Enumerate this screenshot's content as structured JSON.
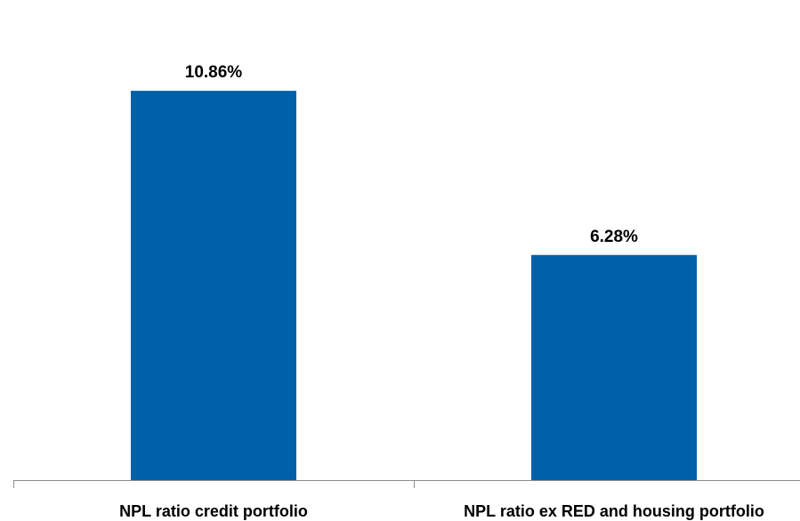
{
  "chart_data": {
    "type": "bar",
    "categories": [
      "NPL ratio credit portfolio",
      "NPL ratio ex RED and housing portfolio"
    ],
    "values": [
      10.86,
      6.28
    ],
    "data_labels": [
      "10.86%",
      "6.28%"
    ],
    "title": "",
    "xlabel": "",
    "ylabel": "",
    "ylim": [
      0,
      12
    ],
    "grid": false,
    "legend": "none",
    "bar_color": "#0060A8"
  }
}
